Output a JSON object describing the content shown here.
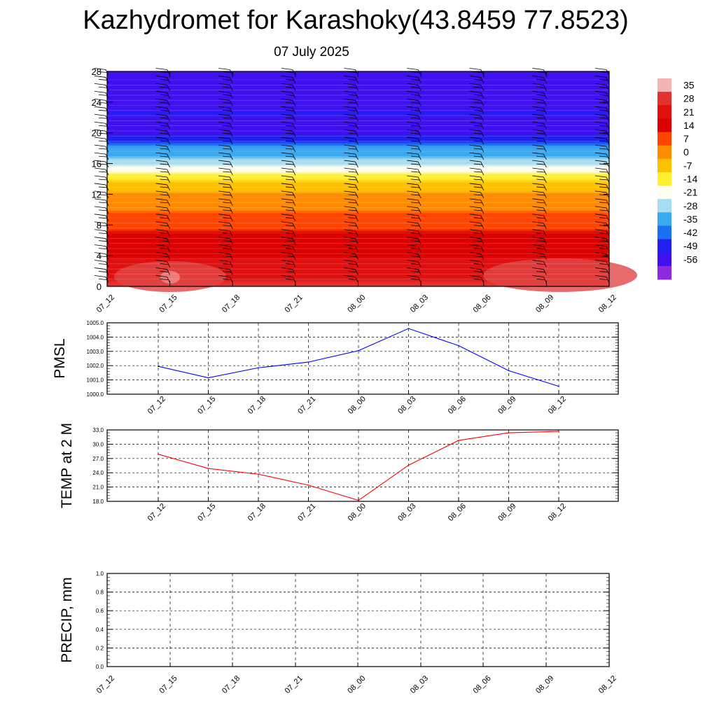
{
  "header": {
    "title": "Kazhydromet for Karashoky(43.8459 77.8523)",
    "subtitle": "07 July 2025"
  },
  "chart_data": [
    {
      "type": "heatmap",
      "name": "temperature-height cross-section",
      "x_ticks": [
        "07_12",
        "07_15",
        "07_18",
        "07_21",
        "08_00",
        "08_03",
        "08_06",
        "08_09",
        "08_12"
      ],
      "y_ticks": [
        0,
        4,
        8,
        12,
        16,
        20,
        24,
        28
      ],
      "ylim": [
        0,
        28
      ],
      "colorbar": {
        "labels": [
          "35",
          "28",
          "21",
          "14",
          "7",
          "0",
          "-7",
          "-14",
          "-21",
          "-28",
          "-35",
          "-42",
          "-49",
          "-56"
        ],
        "colors": [
          "#f2b3b3",
          "#e53030",
          "#e01010",
          "#dc0000",
          "#ff4500",
          "#ff8c00",
          "#ffc000",
          "#ffef30",
          "#fffff0",
          "#a8dcf0",
          "#38a8f0",
          "#1a70f0",
          "#2020f0",
          "#4010f0",
          "#8a2be2"
        ]
      },
      "profile_by_height": {
        "heights": [
          0,
          4,
          8,
          12,
          13.5,
          16,
          18,
          20,
          21,
          22.5,
          25,
          28
        ],
        "values": [
          30,
          20,
          12,
          1,
          -7,
          -22,
          -35,
          -52,
          -56,
          -49,
          -56,
          -56
        ]
      },
      "wind_barbs": true
    },
    {
      "type": "line",
      "ylabel": "PMSL",
      "categories": [
        "07_12",
        "07_15",
        "07_18",
        "07_21",
        "08_00",
        "08_03",
        "08_06",
        "08_09",
        "08_12"
      ],
      "values": [
        1001.95,
        1001.15,
        1001.85,
        1002.25,
        1003.05,
        1004.6,
        1003.4,
        1001.65,
        1000.55
      ],
      "ylim": [
        1000.0,
        1005.0
      ],
      "y_ticks": [
        "1000.0",
        "1001.0",
        "1002.0",
        "1003.0",
        "1004.0",
        "1005.0"
      ],
      "color": "#0000ff",
      "grid": true
    },
    {
      "type": "line",
      "ylabel": "TEMP at 2 M",
      "categories": [
        "07_12",
        "07_15",
        "07_18",
        "07_21",
        "08_00",
        "08_03",
        "08_06",
        "08_09",
        "08_12"
      ],
      "values": [
        27.9,
        24.9,
        23.7,
        21.4,
        18.2,
        25.6,
        30.8,
        32.4,
        32.7
      ],
      "ylim": [
        18.0,
        33.0
      ],
      "y_ticks": [
        "18.0",
        "21.0",
        "24.0",
        "27.0",
        "30.0",
        "33.0"
      ],
      "color": "#ff0000",
      "grid": true
    },
    {
      "type": "line",
      "ylabel": "PRECIP, mm",
      "categories": [
        "07_12",
        "07_15",
        "07_18",
        "07_21",
        "08_00",
        "08_03",
        "08_06",
        "08_09",
        "08_12"
      ],
      "values": [
        0,
        0,
        0,
        0,
        0,
        0,
        0,
        0,
        0
      ],
      "ylim": [
        0.0,
        1.0
      ],
      "y_ticks": [
        "0.0",
        "0.2",
        "0.4",
        "0.6",
        "0.8",
        "1.0"
      ],
      "color": "#006400",
      "grid": true
    }
  ]
}
